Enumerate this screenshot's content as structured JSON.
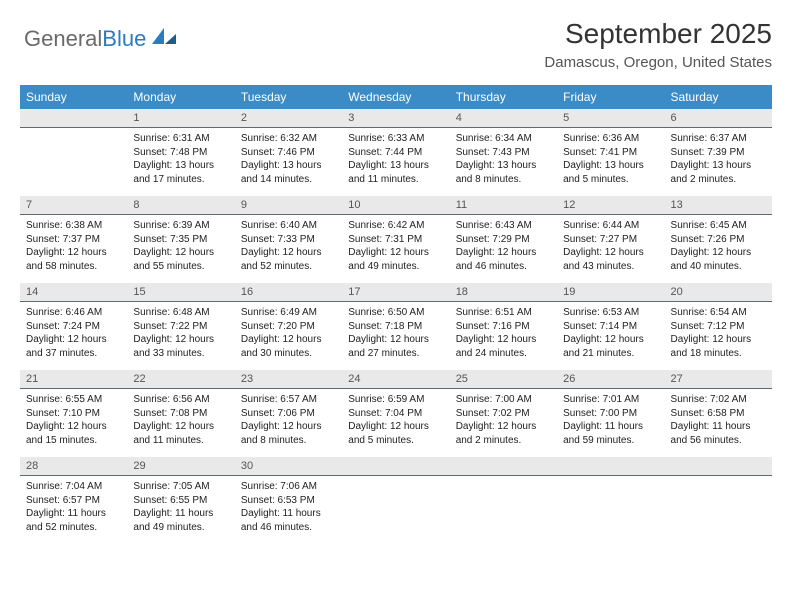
{
  "logo": {
    "part1": "General",
    "part2": "Blue"
  },
  "title": "September 2025",
  "location": "Damascus, Oregon, United States",
  "colors": {
    "header_bg": "#3b8bc6",
    "header_fg": "#ffffff",
    "numrow_bg": "#e9e9e9",
    "numrow_border": "#5a6a78",
    "text": "#222222",
    "logo_gray": "#6a6a6a",
    "logo_blue": "#2b7bbf"
  },
  "day_headers": [
    "Sunday",
    "Monday",
    "Tuesday",
    "Wednesday",
    "Thursday",
    "Friday",
    "Saturday"
  ],
  "weeks": [
    {
      "nums": [
        "",
        "1",
        "2",
        "3",
        "4",
        "5",
        "6"
      ],
      "cells": [
        null,
        {
          "sunrise": "6:31 AM",
          "sunset": "7:48 PM",
          "daylight": "13 hours and 17 minutes."
        },
        {
          "sunrise": "6:32 AM",
          "sunset": "7:46 PM",
          "daylight": "13 hours and 14 minutes."
        },
        {
          "sunrise": "6:33 AM",
          "sunset": "7:44 PM",
          "daylight": "13 hours and 11 minutes."
        },
        {
          "sunrise": "6:34 AM",
          "sunset": "7:43 PM",
          "daylight": "13 hours and 8 minutes."
        },
        {
          "sunrise": "6:36 AM",
          "sunset": "7:41 PM",
          "daylight": "13 hours and 5 minutes."
        },
        {
          "sunrise": "6:37 AM",
          "sunset": "7:39 PM",
          "daylight": "13 hours and 2 minutes."
        }
      ]
    },
    {
      "nums": [
        "7",
        "8",
        "9",
        "10",
        "11",
        "12",
        "13"
      ],
      "cells": [
        {
          "sunrise": "6:38 AM",
          "sunset": "7:37 PM",
          "daylight": "12 hours and 58 minutes."
        },
        {
          "sunrise": "6:39 AM",
          "sunset": "7:35 PM",
          "daylight": "12 hours and 55 minutes."
        },
        {
          "sunrise": "6:40 AM",
          "sunset": "7:33 PM",
          "daylight": "12 hours and 52 minutes."
        },
        {
          "sunrise": "6:42 AM",
          "sunset": "7:31 PM",
          "daylight": "12 hours and 49 minutes."
        },
        {
          "sunrise": "6:43 AM",
          "sunset": "7:29 PM",
          "daylight": "12 hours and 46 minutes."
        },
        {
          "sunrise": "6:44 AM",
          "sunset": "7:27 PM",
          "daylight": "12 hours and 43 minutes."
        },
        {
          "sunrise": "6:45 AM",
          "sunset": "7:26 PM",
          "daylight": "12 hours and 40 minutes."
        }
      ]
    },
    {
      "nums": [
        "14",
        "15",
        "16",
        "17",
        "18",
        "19",
        "20"
      ],
      "cells": [
        {
          "sunrise": "6:46 AM",
          "sunset": "7:24 PM",
          "daylight": "12 hours and 37 minutes."
        },
        {
          "sunrise": "6:48 AM",
          "sunset": "7:22 PM",
          "daylight": "12 hours and 33 minutes."
        },
        {
          "sunrise": "6:49 AM",
          "sunset": "7:20 PM",
          "daylight": "12 hours and 30 minutes."
        },
        {
          "sunrise": "6:50 AM",
          "sunset": "7:18 PM",
          "daylight": "12 hours and 27 minutes."
        },
        {
          "sunrise": "6:51 AM",
          "sunset": "7:16 PM",
          "daylight": "12 hours and 24 minutes."
        },
        {
          "sunrise": "6:53 AM",
          "sunset": "7:14 PM",
          "daylight": "12 hours and 21 minutes."
        },
        {
          "sunrise": "6:54 AM",
          "sunset": "7:12 PM",
          "daylight": "12 hours and 18 minutes."
        }
      ]
    },
    {
      "nums": [
        "21",
        "22",
        "23",
        "24",
        "25",
        "26",
        "27"
      ],
      "cells": [
        {
          "sunrise": "6:55 AM",
          "sunset": "7:10 PM",
          "daylight": "12 hours and 15 minutes."
        },
        {
          "sunrise": "6:56 AM",
          "sunset": "7:08 PM",
          "daylight": "12 hours and 11 minutes."
        },
        {
          "sunrise": "6:57 AM",
          "sunset": "7:06 PM",
          "daylight": "12 hours and 8 minutes."
        },
        {
          "sunrise": "6:59 AM",
          "sunset": "7:04 PM",
          "daylight": "12 hours and 5 minutes."
        },
        {
          "sunrise": "7:00 AM",
          "sunset": "7:02 PM",
          "daylight": "12 hours and 2 minutes."
        },
        {
          "sunrise": "7:01 AM",
          "sunset": "7:00 PM",
          "daylight": "11 hours and 59 minutes."
        },
        {
          "sunrise": "7:02 AM",
          "sunset": "6:58 PM",
          "daylight": "11 hours and 56 minutes."
        }
      ]
    },
    {
      "nums": [
        "28",
        "29",
        "30",
        "",
        "",
        "",
        ""
      ],
      "cells": [
        {
          "sunrise": "7:04 AM",
          "sunset": "6:57 PM",
          "daylight": "11 hours and 52 minutes."
        },
        {
          "sunrise": "7:05 AM",
          "sunset": "6:55 PM",
          "daylight": "11 hours and 49 minutes."
        },
        {
          "sunrise": "7:06 AM",
          "sunset": "6:53 PM",
          "daylight": "11 hours and 46 minutes."
        },
        null,
        null,
        null,
        null
      ]
    }
  ],
  "labels": {
    "sunrise": "Sunrise:",
    "sunset": "Sunset:",
    "daylight": "Daylight:"
  }
}
